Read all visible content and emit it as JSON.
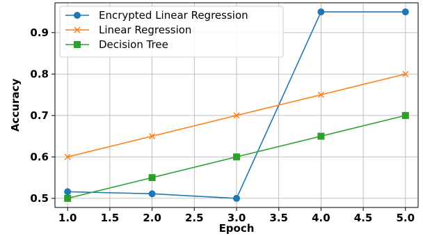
{
  "chart_data": {
    "type": "line",
    "title": "",
    "xlabel": "Epoch",
    "ylabel": "Accuracy",
    "xlim": [
      0.85,
      5.15
    ],
    "ylim": [
      0.478,
      0.972
    ],
    "xticks": [
      1.0,
      1.5,
      2.0,
      2.5,
      3.0,
      3.5,
      4.0,
      4.5,
      5.0
    ],
    "xtick_labels": [
      "1.0",
      "1.5",
      "2.0",
      "2.5",
      "3.0",
      "3.5",
      "4.0",
      "4.5",
      "5.0"
    ],
    "yticks": [
      0.5,
      0.6,
      0.7,
      0.8,
      0.9
    ],
    "ytick_labels": [
      "0.5",
      "0.6",
      "0.7",
      "0.8",
      "0.9"
    ],
    "grid": true,
    "legend_position": "top-left",
    "series": [
      {
        "name": "Encrypted Linear Regression",
        "color": "#1f77b4",
        "marker": "circle",
        "x": [
          1,
          2,
          3,
          4,
          5
        ],
        "y": [
          0.516,
          0.511,
          0.5,
          0.95,
          0.95
        ]
      },
      {
        "name": "Linear Regression",
        "color": "#ff7f0e",
        "marker": "x",
        "x": [
          1,
          2,
          3,
          4,
          5
        ],
        "y": [
          0.6,
          0.65,
          0.7,
          0.75,
          0.8
        ]
      },
      {
        "name": "Decision Tree",
        "color": "#2ca02c",
        "marker": "square",
        "x": [
          1,
          2,
          3,
          4,
          5
        ],
        "y": [
          0.5,
          0.55,
          0.6,
          0.65,
          0.7
        ]
      }
    ]
  }
}
